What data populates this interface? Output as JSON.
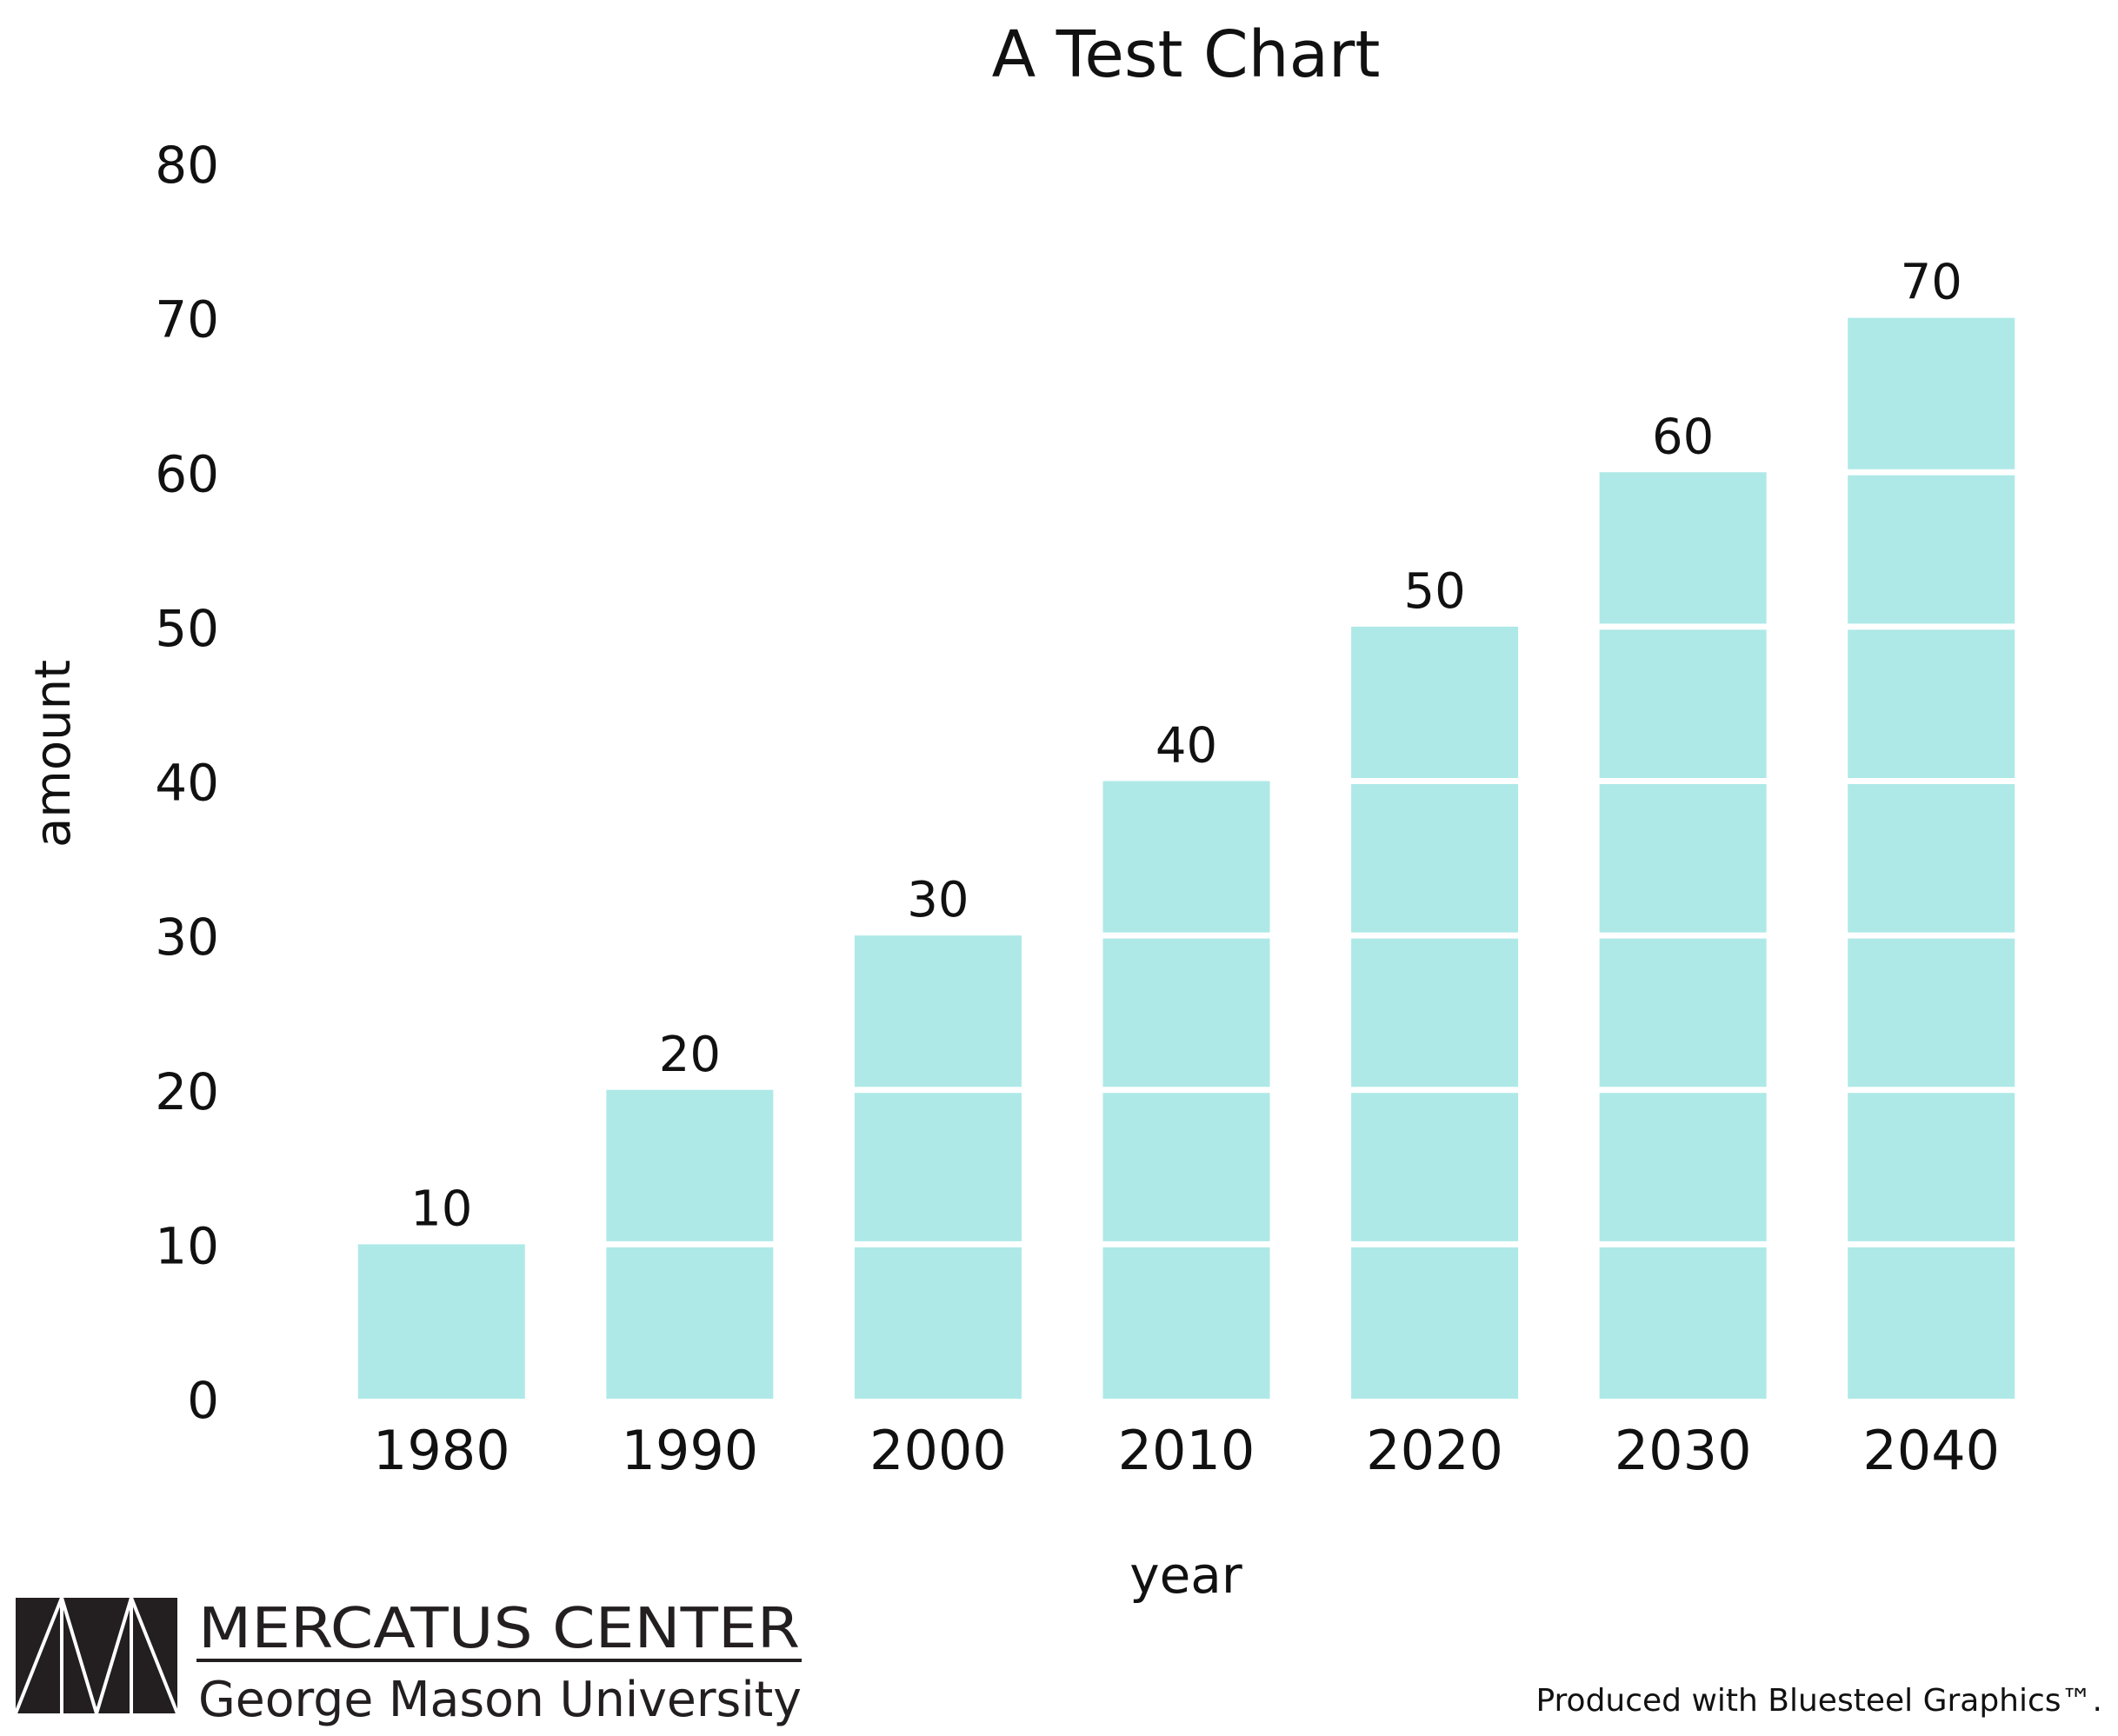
{
  "chart_data": {
    "type": "bar",
    "title": "A Test Chart",
    "xlabel": "year",
    "ylabel": "amount",
    "categories": [
      "1980",
      "1990",
      "2000",
      "2010",
      "2020",
      "2030",
      "2040"
    ],
    "values": [
      10,
      20,
      30,
      40,
      50,
      60,
      70
    ],
    "data_labels": [
      "10",
      "20",
      "30",
      "40",
      "50",
      "60",
      "70"
    ],
    "ylim": [
      0,
      80
    ],
    "yticks": [
      0,
      10,
      20,
      30,
      40,
      50,
      60,
      70,
      80
    ],
    "ytick_labels": [
      "0",
      "10",
      "20",
      "30",
      "40",
      "50",
      "60",
      "70",
      "80"
    ],
    "segment_size": 10,
    "bar_color": "#aee9e7",
    "grid": false,
    "legend": "none"
  },
  "branding": {
    "org_name": "MERCATUS CENTER",
    "org_sub": "George Mason University",
    "credit": "Produced with Bluesteel Graphics™."
  }
}
